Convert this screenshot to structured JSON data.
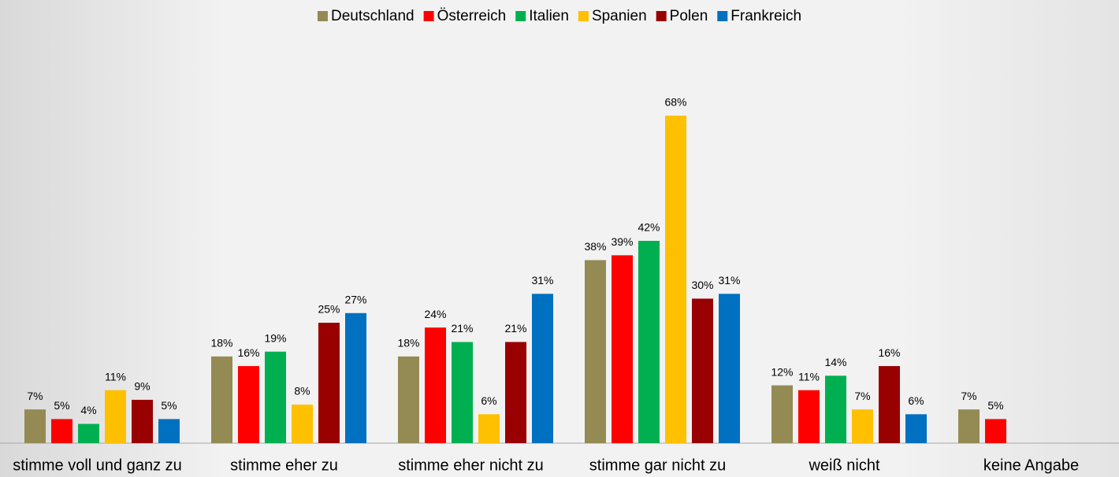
{
  "chart_data": {
    "type": "bar",
    "categories": [
      "stimme voll und ganz zu",
      "stimme eher zu",
      "stimme eher nicht zu",
      "stimme gar nicht zu",
      "weiß nicht",
      "keine Angabe"
    ],
    "series": [
      {
        "name": "Deutschland",
        "color": "#948a54",
        "values": [
          7,
          18,
          18,
          38,
          12,
          7
        ],
        "value_labels": [
          "7%",
          "18%",
          "18%",
          "38%",
          "12%",
          "7%"
        ]
      },
      {
        "name": "Österreich",
        "color": "#ff0000",
        "values": [
          5,
          16,
          24,
          39,
          11,
          5
        ],
        "value_labels": [
          "5%",
          "16%",
          "24%",
          "39%",
          "11%",
          "5%"
        ]
      },
      {
        "name": "Italien",
        "color": "#00b050",
        "values": [
          4,
          19,
          21,
          42,
          14,
          null
        ],
        "value_labels": [
          "4%",
          "19%",
          "21%",
          "42%",
          "14%",
          null
        ]
      },
      {
        "name": "Spanien",
        "color": "#ffc000",
        "values": [
          11,
          8,
          6,
          68,
          7,
          null
        ],
        "value_labels": [
          "11%",
          "8%",
          "6%",
          "68%",
          "7%",
          null
        ]
      },
      {
        "name": "Polen",
        "color": "#990000",
        "values": [
          9,
          25,
          21,
          30,
          16,
          null
        ],
        "value_labels": [
          "9%",
          "25%",
          "21%",
          "30%",
          "16%",
          null
        ]
      },
      {
        "name": "Frankreich",
        "color": "#0070c0",
        "values": [
          5,
          27,
          31,
          31,
          6,
          null
        ],
        "value_labels": [
          "5%",
          "27%",
          "31%",
          "31%",
          "6%",
          null
        ]
      }
    ],
    "ylim": [
      0,
      92
    ],
    "legend": "top"
  }
}
